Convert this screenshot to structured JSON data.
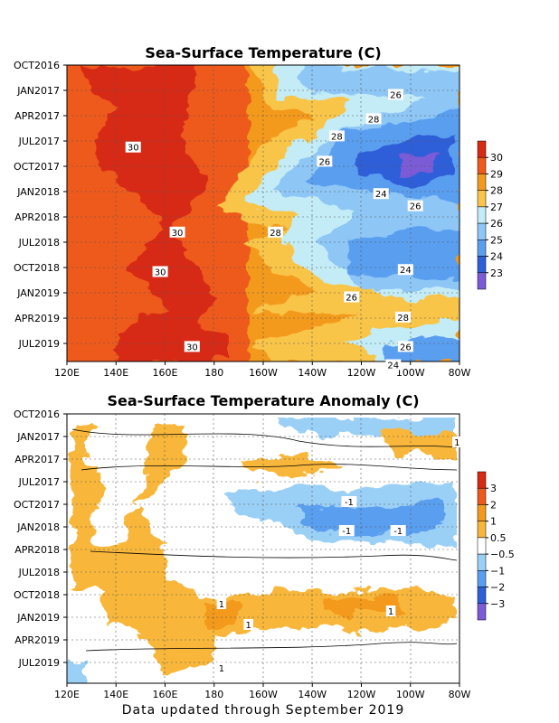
{
  "footer": "Data updated through September 2019",
  "chart_data": [
    {
      "type": "heatmap",
      "title": "Sea-Surface Temperature (C)",
      "x": [
        "120E",
        "140E",
        "160E",
        "180",
        "160W",
        "140W",
        "120W",
        "100W",
        "80W"
      ],
      "y": [
        "OCT2016",
        "JAN2017",
        "APR2017",
        "JUL2017",
        "OCT2017",
        "JAN2018",
        "APR2018",
        "JUL2018",
        "OCT2018",
        "JAN2019",
        "APR2019",
        "JUL2019"
      ],
      "colorbar": {
        "labels": [
          "30",
          "29",
          "28",
          "27",
          "26",
          "25",
          "24",
          "23"
        ],
        "colors": [
          "#d62a12",
          "#ee5a1c",
          "#f39a1e",
          "#f8c54a",
          "#c3ecf7",
          "#8ec6f5",
          "#5a9ef0",
          "#2e5fd8",
          "#7b5bd6"
        ]
      },
      "contour_labels": [
        {
          "text": "26",
          "lon": -106,
          "t": 2017.04
        },
        {
          "text": "28",
          "lon": -115,
          "t": 2017.28
        },
        {
          "text": "30",
          "lon": 147,
          "t": 2017.56
        },
        {
          "text": "28",
          "lon": -130,
          "t": 2017.45
        },
        {
          "text": "26",
          "lon": -135,
          "t": 2017.7
        },
        {
          "text": "24",
          "lon": -112,
          "t": 2018.02
        },
        {
          "text": "26",
          "lon": -98,
          "t": 2018.14
        },
        {
          "text": "30",
          "lon": 165,
          "t": 2018.4
        },
        {
          "text": "28",
          "lon": -155,
          "t": 2018.4
        },
        {
          "text": "30",
          "lon": 158,
          "t": 2018.79
        },
        {
          "text": "24",
          "lon": -102,
          "t": 2018.77
        },
        {
          "text": "26",
          "lon": -124,
          "t": 2019.04
        },
        {
          "text": "28",
          "lon": -103,
          "t": 2019.24
        },
        {
          "text": "30",
          "lon": 171,
          "t": 2019.53
        },
        {
          "text": "26",
          "lon": -102,
          "t": 2019.53
        },
        {
          "text": "24",
          "lon": -107,
          "t": 2019.71
        }
      ]
    },
    {
      "type": "heatmap",
      "title": "Sea-Surface Temperature Anomaly (C)",
      "x": [
        "120E",
        "140E",
        "160E",
        "180",
        "160W",
        "140W",
        "120W",
        "100W",
        "80W"
      ],
      "y": [
        "OCT2016",
        "JAN2017",
        "APR2017",
        "JUL2017",
        "OCT2017",
        "JAN2018",
        "APR2018",
        "JUL2018",
        "OCT2018",
        "JAN2019",
        "APR2019",
        "JUL2019"
      ],
      "colorbar": {
        "labels": [
          "3",
          "2",
          "1",
          "0.5",
          "−0.5",
          "−1",
          "−2",
          "−3"
        ],
        "colors": [
          "#d62a12",
          "#ee5a1c",
          "#f39a1e",
          "#f8b73a",
          "#ffffff",
          "#9bd0f6",
          "#5a9ef0",
          "#2e5fd8",
          "#7b5bd6"
        ]
      },
      "contour_labels": [
        {
          "text": "1",
          "lon": -81,
          "t": 2017.06
        },
        {
          "text": "-1",
          "lon": -125,
          "t": 2017.72
        },
        {
          "text": "-1",
          "lon": -126,
          "t": 2018.04
        },
        {
          "text": "-1",
          "lon": -105,
          "t": 2018.04
        },
        {
          "text": "1",
          "lon": -177,
          "t": 2018.85
        },
        {
          "text": "1",
          "lon": -108,
          "t": 2018.93
        },
        {
          "text": "1",
          "lon": -166,
          "t": 2019.08
        },
        {
          "text": "1",
          "lon": -177,
          "t": 2019.56
        }
      ]
    }
  ]
}
